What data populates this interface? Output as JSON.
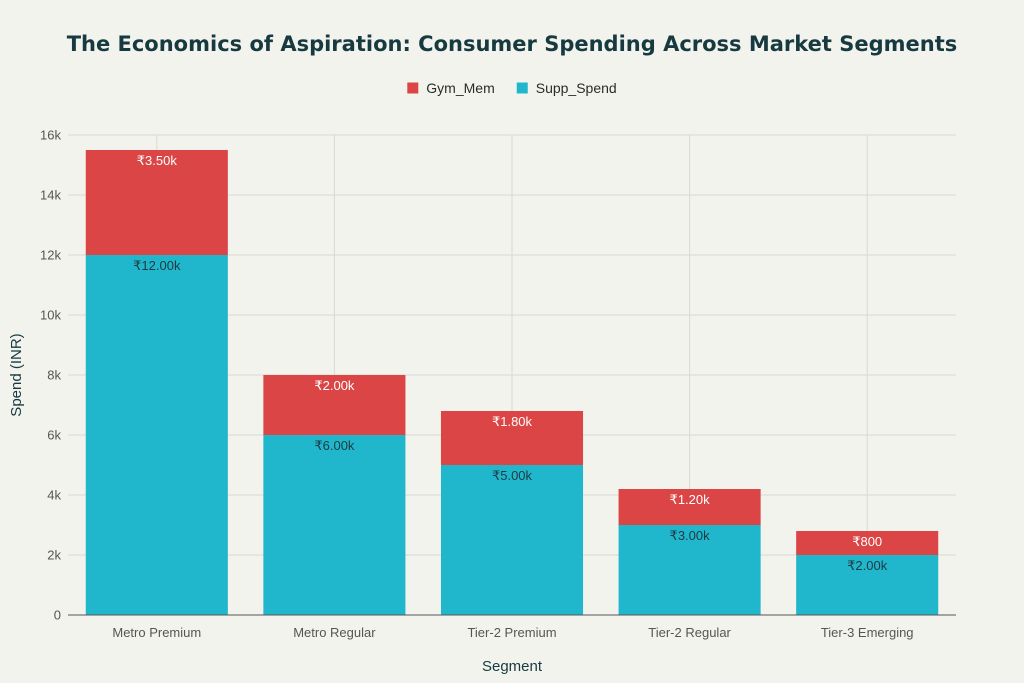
{
  "chart_data": {
    "type": "bar",
    "stacked": true,
    "title": "The Economics of Aspiration: Consumer Spending Across Market Segments",
    "xlabel": "Segment",
    "ylabel": "Spend (INR)",
    "categories": [
      "Metro Premium",
      "Metro Regular",
      "Tier-2 Premium",
      "Tier-2 Regular",
      "Tier-3 Emerging"
    ],
    "series": [
      {
        "name": "Supp_Spend",
        "color": "#20b7cd",
        "values": [
          12000,
          6000,
          5000,
          3000,
          2000
        ],
        "labels": [
          "₹12.00k",
          "₹6.00k",
          "₹5.00k",
          "₹3.00k",
          "₹2.00k"
        ],
        "label_color": "#1e3a40"
      },
      {
        "name": "Gym_Mem",
        "color": "#db4545",
        "values": [
          3500,
          2000,
          1800,
          1200,
          800
        ],
        "labels": [
          "₹3.50k",
          "₹2.00k",
          "₹1.80k",
          "₹1.20k",
          "₹800"
        ],
        "label_color": "#ffffff"
      }
    ],
    "legend_order": [
      "Gym_Mem",
      "Supp_Spend"
    ],
    "legend_position": "top-center",
    "ylim": [
      0,
      16000
    ],
    "yticks": [
      0,
      2000,
      4000,
      6000,
      8000,
      10000,
      12000,
      14000,
      16000
    ],
    "ytick_labels": [
      "0",
      "2k",
      "4k",
      "6k",
      "8k",
      "10k",
      "12k",
      "14k",
      "16k"
    ],
    "grid": true
  }
}
